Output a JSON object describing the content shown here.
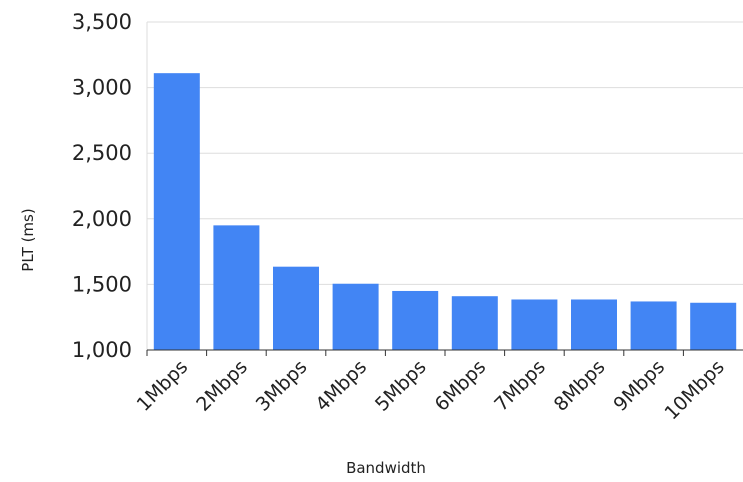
{
  "chart_data": {
    "type": "bar",
    "xlabel": "Bandwidth",
    "ylabel": "PLT (ms)",
    "categories": [
      "1Mbps",
      "2Mbps",
      "3Mbps",
      "4Mbps",
      "5Mbps",
      "6Mbps",
      "7Mbps",
      "8Mbps",
      "9Mbps",
      "10Mbps"
    ],
    "values": [
      3110,
      1950,
      1635,
      1505,
      1450,
      1410,
      1385,
      1385,
      1370,
      1360
    ],
    "ylim": [
      1000,
      3500
    ],
    "yticks": [
      "1,000",
      "1,500",
      "2,000",
      "2,500",
      "3,000",
      "3,500"
    ],
    "grid": true,
    "bar_color": "#4285f4"
  }
}
